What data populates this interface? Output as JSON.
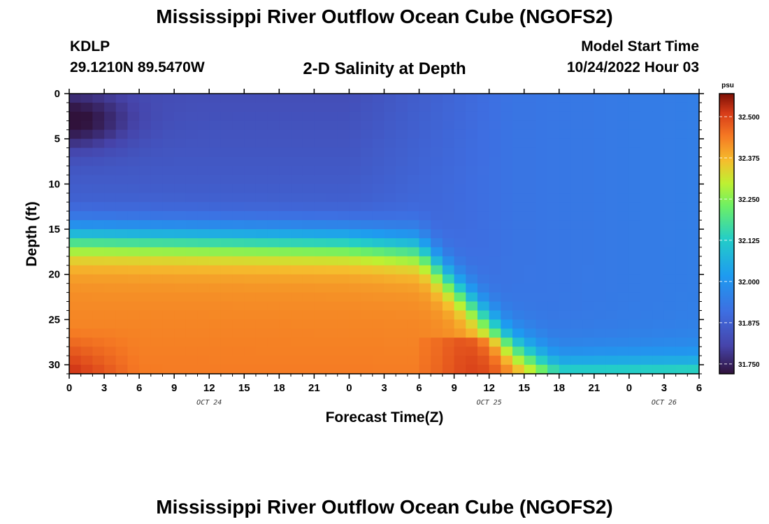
{
  "header": {
    "title": "Mississippi River Outflow Ocean Cube (NGOFS2)",
    "station": "KDLP",
    "coordinates": "29.1210N  89.5470W",
    "subtitle": "2-D Salinity at Depth",
    "start_label": "Model Start Time",
    "start_value": "10/24/2022 Hour 03"
  },
  "footer": {
    "title": "Mississippi River Outflow Ocean Cube (NGOFS2)"
  },
  "chart_data": {
    "type": "heatmap",
    "title": "2-D Salinity at Depth",
    "xlabel": "Forecast Time(Z)",
    "ylabel": "Depth (ft)",
    "x_tick_labels": [
      "0",
      "3",
      "6",
      "9",
      "12",
      "15",
      "18",
      "21",
      "0",
      "3",
      "6",
      "9",
      "12",
      "15",
      "18",
      "21",
      "0",
      "3",
      "6"
    ],
    "x_range_hours": [
      0,
      54
    ],
    "day_labels": [
      {
        "text": "OCT 24",
        "hour": 12
      },
      {
        "text": "OCT 25",
        "hour": 36
      },
      {
        "text": "OCT 26",
        "hour": 51
      }
    ],
    "y_ticks": [
      0,
      5,
      10,
      15,
      20,
      25,
      30
    ],
    "y_range_ft": [
      0,
      31
    ],
    "y_inverted": true,
    "colorbar": {
      "units": "psu",
      "ticks": [
        "32.500",
        "32.375",
        "32.250",
        "32.125",
        "32.000",
        "31.875",
        "31.750"
      ],
      "range": [
        31.72,
        32.57
      ]
    },
    "grid": {
      "time_step_hours": 1,
      "depth_step_ft": 1,
      "description": "salinity low (~31.72-31.80) in upper 15 ft, high (~32.40-32.57) below ~17 ft early in forecast; halocline deepens after hour 30 toward ~30 ft by hour 40, near-uniform ~31.90 afterwards"
    }
  }
}
